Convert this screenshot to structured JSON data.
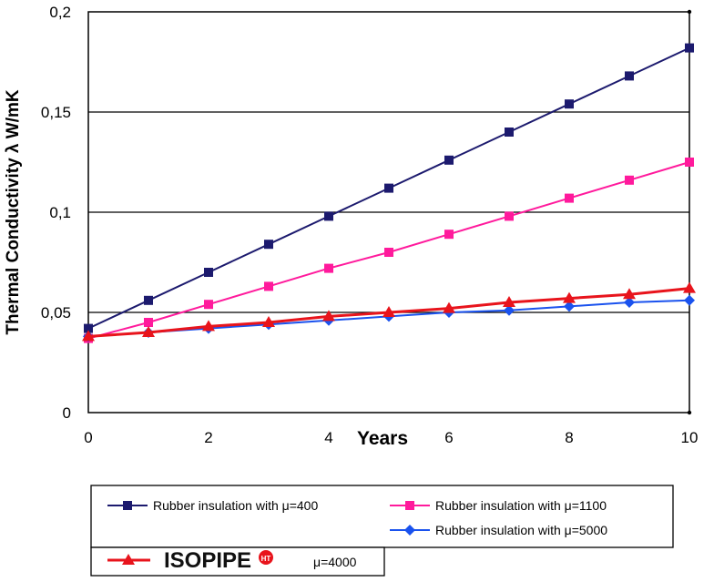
{
  "chart_data": {
    "type": "line",
    "ylabel": "Thermal Conductivity λ W/mK",
    "xlabel": "Years",
    "xlim": [
      0,
      10
    ],
    "ylim": [
      0,
      0.2
    ],
    "xticks": [
      0,
      2,
      4,
      6,
      8,
      10
    ],
    "xtick_labels": [
      "0",
      "2",
      "4",
      "6",
      "8",
      "10"
    ],
    "yticks": [
      0,
      0.05,
      0.1,
      0.15,
      0.2
    ],
    "ytick_labels": [
      "0",
      "0,05",
      "0,1",
      "0,15",
      "0,2"
    ],
    "grid": "horizontal",
    "legend_placement": "bottom",
    "x": [
      0,
      1,
      2,
      3,
      4,
      5,
      6,
      7,
      8,
      9,
      10
    ],
    "series": [
      {
        "name": "Rubber insulation with μ=400",
        "color": "#1c1a6e",
        "marker": "square",
        "values": [
          0.042,
          0.056,
          0.07,
          0.084,
          0.098,
          0.112,
          0.126,
          0.14,
          0.154,
          0.168,
          0.182
        ]
      },
      {
        "name": "Rubber insulation with μ=1100",
        "color": "#ff1a9c",
        "marker": "square",
        "values": [
          0.037,
          0.045,
          0.054,
          0.063,
          0.072,
          0.08,
          0.089,
          0.098,
          0.107,
          0.116,
          0.125
        ]
      },
      {
        "name": "Rubber insulation with μ=5000",
        "color": "#1a52ee",
        "marker": "diamond",
        "values": [
          0.038,
          0.04,
          0.042,
          0.044,
          0.046,
          0.048,
          0.05,
          0.051,
          0.053,
          0.055,
          0.056
        ]
      },
      {
        "name": "μ=4000",
        "brand": "ISOPIPE",
        "brand_badge": "HT",
        "color": "#e8141c",
        "marker": "triangle",
        "values": [
          0.038,
          0.04,
          0.043,
          0.045,
          0.048,
          0.05,
          0.052,
          0.055,
          0.057,
          0.059,
          0.062
        ]
      }
    ]
  }
}
